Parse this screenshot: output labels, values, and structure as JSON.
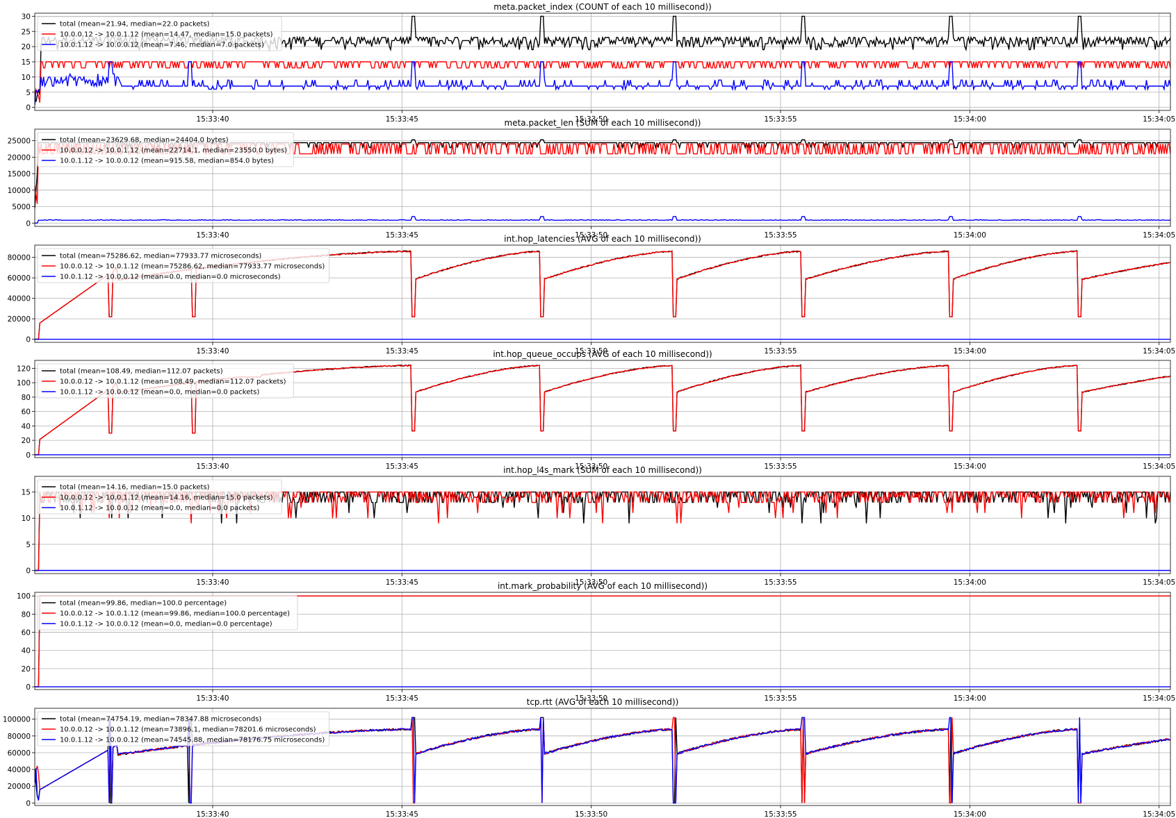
{
  "x_ticks": [
    "15:33:40",
    "15:33:45",
    "15:33:50",
    "15:33:55",
    "15:34:00",
    "15:34:05"
  ],
  "x_range": [
    "15:33:35.3",
    "15:34:05.3"
  ],
  "colors": {
    "total": "#000000",
    "forward": "#ff0000",
    "reverse": "#0000ff"
  },
  "panels": [
    {
      "title": "meta.packet_index (COUNT of each 10 millisecond))",
      "yticks": [
        "0",
        "5",
        "10",
        "15",
        "20",
        "25",
        "30"
      ],
      "ylim": [
        -1,
        31
      ],
      "legend": [
        "total (mean=21.94, median=22.0 packets)",
        "10.0.0.12 -> 10.0.1.12 (mean=14.47, median=15.0 packets)",
        "10.0.1.12 -> 10.0.0.12 (mean=7.46, median=7.0 packets)"
      ]
    },
    {
      "title": "meta.packet_len (SUM of each 10 millisecond))",
      "yticks": [
        "0",
        "5000",
        "10000",
        "15000",
        "20000",
        "25000"
      ],
      "ylim": [
        -1000,
        28500
      ],
      "legend": [
        "total (mean=23629.68, median=24404.0 bytes)",
        "10.0.0.12 -> 10.0.1.12 (mean=22714.1, median=23550.0 bytes)",
        "10.0.1.12 -> 10.0.0.12 (mean=915.58, median=854.0 bytes)"
      ]
    },
    {
      "title": "int.hop_latencies (AVG of each 10 millisecond))",
      "yticks": [
        "0",
        "20000",
        "40000",
        "60000",
        "80000"
      ],
      "ylim": [
        -3000,
        92000
      ],
      "legend": [
        "total (mean=75286.62, median=77933.77 microseconds)",
        "10.0.0.12 -> 10.0.1.12 (mean=75286.62, median=77933.77 microseconds)",
        "10.0.1.12 -> 10.0.0.12 (mean=0.0, median=0.0 microseconds)"
      ]
    },
    {
      "title": "int.hop_queue_occups (AVG of each 10 millisecond))",
      "yticks": [
        "0",
        "20",
        "40",
        "60",
        "80",
        "100",
        "120"
      ],
      "ylim": [
        -4,
        131
      ],
      "legend": [
        "total (mean=108.49, median=112.07 packets)",
        "10.0.0.12 -> 10.0.1.12 (mean=108.49, median=112.07 packets)",
        "10.0.1.12 -> 10.0.0.12 (mean=0.0, median=0.0 packets)"
      ]
    },
    {
      "title": "int.hop_l4s_mark (SUM of each 10 millisecond))",
      "yticks": [
        "0",
        "5",
        "10",
        "15"
      ],
      "ylim": [
        -0.6,
        18
      ],
      "legend": [
        "total (mean=14.16, median=15.0 packets)",
        "10.0.0.12 -> 10.0.1.12 (mean=14.16, median=15.0 packets)",
        "10.0.1.12 -> 10.0.0.12 (mean=0.0, median=0.0 packets)"
      ]
    },
    {
      "title": "int.mark_probability (AVG of each 10 millisecond))",
      "yticks": [
        "0",
        "20",
        "40",
        "60",
        "80",
        "100"
      ],
      "ylim": [
        -3,
        104
      ],
      "legend": [
        "total (mean=99.86, median=100.0 percentage)",
        "10.0.0.12 -> 10.0.1.12 (mean=99.86, median=100.0 percentage)",
        "10.0.1.12 -> 10.0.0.12 (mean=0.0, median=0.0 percentage)"
      ]
    },
    {
      "title": "tcp.rtt (AVG of each 10 millisecond))",
      "yticks": [
        "0",
        "20000",
        "40000",
        "60000",
        "80000",
        "100000"
      ],
      "ylim": [
        -3000,
        113000
      ],
      "legend": [
        "total (mean=74754.19, median=78347.88 microseconds)",
        "10.0.0.12 -> 10.0.1.12 (mean=73896.1, median=78201.6 microseconds)",
        "10.0.1.12 -> 10.0.0.12 (mean=74545.88, median=78176.75 microseconds)"
      ]
    }
  ],
  "chart_data": [
    {
      "type": "line",
      "title": "meta.packet_index (COUNT of each 10 millisecond))",
      "x": [
        "15:33:35.3",
        "15:33:37",
        "15:33:40",
        "15:33:45",
        "15:33:45.3",
        "15:33:48.7",
        "15:33:52.2",
        "15:33:55.6",
        "15:33:59.5",
        "15:34:02.9",
        "15:34:05.3"
      ],
      "ylim": [
        -1,
        31
      ],
      "series": [
        {
          "name": "total (mean=21.94, median=22.0 packets)",
          "values": [
            0,
            22,
            22,
            22,
            30,
            30,
            30,
            30,
            30,
            30,
            22
          ]
        },
        {
          "name": "10.0.0.12 -> 10.0.1.12 (mean=14.47, median=15.0 packets)",
          "values": [
            0,
            14,
            14,
            14,
            15,
            15,
            15,
            15,
            15,
            15,
            15
          ]
        },
        {
          "name": "10.0.1.12 -> 10.0.0.12 (mean=7.46, median=7.0 packets)",
          "values": [
            0,
            15,
            7,
            7,
            15,
            15,
            15,
            15,
            15,
            15,
            7
          ]
        }
      ]
    },
    {
      "type": "line",
      "title": "meta.packet_len (SUM of each 10 millisecond))",
      "x": [
        "15:33:35.3",
        "15:33:37",
        "15:33:40",
        "15:33:45",
        "15:33:50",
        "15:33:55",
        "15:34:00",
        "15:34:05.3"
      ],
      "ylim": [
        -1000,
        28500
      ],
      "series": [
        {
          "name": "total (mean=23629.68, median=24404.0 bytes)",
          "values": [
            0,
            24400,
            24400,
            24400,
            24400,
            24400,
            24400,
            24400
          ]
        },
        {
          "name": "10.0.0.12 -> 10.0.1.12 (mean=22714.1, median=23550.0 bytes)",
          "values": [
            0,
            23550,
            23550,
            23550,
            23550,
            23550,
            23550,
            23550
          ]
        },
        {
          "name": "10.0.1.12 -> 10.0.0.12 (mean=915.58, median=854.0 bytes)",
          "values": [
            0,
            854,
            854,
            854,
            854,
            854,
            854,
            854
          ]
        }
      ]
    },
    {
      "type": "line",
      "title": "int.hop_latencies (AVG of each 10 millisecond))",
      "x": [
        "15:33:35.3",
        "15:33:35.8",
        "15:33:37.5",
        "15:33:45.2",
        "15:33:45.3",
        "15:33:48.6",
        "15:33:48.7",
        "15:33:52.1",
        "15:33:52.2",
        "15:33:55.6",
        "15:33:55.7",
        "15:33:59.4",
        "15:33:59.5",
        "15:34:02.9",
        "15:34:03",
        "15:34:05.3"
      ],
      "ylim": [
        -3000,
        92000
      ],
      "series": [
        {
          "name": "total (mean=75286.62, median=77933.77 microseconds)",
          "values": [
            0,
            15000,
            70000,
            84000,
            27000,
            88000,
            25000,
            86000,
            20000,
            88000,
            20000,
            89000,
            22000,
            87000,
            27000,
            82000
          ]
        },
        {
          "name": "10.0.0.12 -> 10.0.1.12 (mean=75286.62, median=77933.77 microseconds)",
          "values": [
            0,
            15000,
            70000,
            84000,
            27000,
            88000,
            25000,
            86000,
            20000,
            88000,
            20000,
            89000,
            22000,
            87000,
            27000,
            82000
          ]
        },
        {
          "name": "10.0.1.12 -> 10.0.0.12 (mean=0.0, median=0.0 microseconds)",
          "values": [
            0,
            0,
            0,
            0,
            0,
            0,
            0,
            0,
            0,
            0,
            0,
            0,
            0,
            0,
            0,
            0
          ]
        }
      ]
    },
    {
      "type": "line",
      "title": "int.hop_queue_occups (AVG of each 10 millisecond))",
      "x": [
        "15:33:35.3",
        "15:33:35.8",
        "15:33:37.5",
        "15:33:45.2",
        "15:33:45.3",
        "15:33:48.6",
        "15:33:48.7",
        "15:33:52.1",
        "15:33:52.2",
        "15:33:55.6",
        "15:33:55.7",
        "15:33:59.4",
        "15:33:59.5",
        "15:34:02.9",
        "15:34:03",
        "15:34:05.3"
      ],
      "ylim": [
        -4,
        131
      ],
      "series": [
        {
          "name": "total (mean=108.49, median=112.07 packets)",
          "values": [
            0,
            20,
            100,
            125,
            39,
            125,
            37,
            125,
            28,
            125,
            28,
            125,
            33,
            125,
            39,
            120
          ]
        },
        {
          "name": "10.0.0.12 -> 10.0.1.12 (mean=108.49, median=112.07 packets)",
          "values": [
            0,
            20,
            100,
            125,
            39,
            125,
            37,
            125,
            28,
            125,
            28,
            125,
            33,
            125,
            39,
            120
          ]
        },
        {
          "name": "10.0.1.12 -> 10.0.0.12 (mean=0.0, median=0.0 packets)",
          "values": [
            0,
            0,
            0,
            0,
            0,
            0,
            0,
            0,
            0,
            0,
            0,
            0,
            0,
            0,
            0,
            0
          ]
        }
      ]
    },
    {
      "type": "line",
      "title": "int.hop_l4s_mark (SUM of each 10 millisecond))",
      "x": [
        "15:33:35.3",
        "15:33:35.5",
        "15:33:40",
        "15:33:45",
        "15:33:48.6",
        "15:33:50",
        "15:33:55",
        "15:34:00",
        "15:34:02.8",
        "15:34:05.3"
      ],
      "ylim": [
        -0.6,
        18
      ],
      "series": [
        {
          "name": "total (mean=14.16, median=15.0 packets)",
          "values": [
            0,
            15,
            15,
            15,
            5,
            15,
            15,
            15,
            7,
            15
          ]
        },
        {
          "name": "10.0.0.12 -> 10.0.1.12 (mean=14.16, median=15.0 packets)",
          "values": [
            0,
            15,
            15,
            15,
            5,
            15,
            15,
            15,
            7,
            15
          ]
        },
        {
          "name": "10.0.1.12 -> 10.0.0.12 (mean=0.0, median=0.0 packets)",
          "values": [
            0,
            0,
            0,
            0,
            0,
            0,
            0,
            0,
            0,
            0
          ]
        }
      ]
    },
    {
      "type": "line",
      "title": "int.mark_probability (AVG of each 10 millisecond))",
      "x": [
        "15:33:35.3",
        "15:33:35.5",
        "15:34:05.3"
      ],
      "ylim": [
        -3,
        104
      ],
      "series": [
        {
          "name": "total (mean=99.86, median=100.0 percentage)",
          "values": [
            0,
            100,
            100
          ]
        },
        {
          "name": "10.0.0.12 -> 10.0.1.12 (mean=99.86, median=100.0 percentage)",
          "values": [
            0,
            100,
            100
          ]
        },
        {
          "name": "10.0.1.12 -> 10.0.0.12 (mean=0.0, median=0.0 percentage)",
          "values": [
            0,
            0,
            0
          ]
        }
      ]
    },
    {
      "type": "line",
      "title": "tcp.rtt (AVG of each 10 millisecond))",
      "x": [
        "15:33:35.3",
        "15:33:35.8",
        "15:33:37.5",
        "15:33:45.2",
        "15:33:45.3",
        "15:33:48.6",
        "15:33:48.7",
        "15:33:52.1",
        "15:33:52.2",
        "15:33:55.6",
        "15:33:55.7",
        "15:33:59.4",
        "15:33:59.5",
        "15:34:02.9",
        "15:34:03",
        "15:34:05.3"
      ],
      "ylim": [
        -3000,
        113000
      ],
      "series": [
        {
          "name": "total (mean=74754.19, median=78347.88 microseconds)",
          "values": [
            0,
            15000,
            70000,
            85000,
            0,
            88000,
            0,
            87000,
            0,
            89000,
            0,
            90000,
            0,
            88000,
            0,
            83000
          ]
        },
        {
          "name": "10.0.0.12 -> 10.0.1.12 (mean=73896.1, median=78201.6 microseconds)",
          "values": [
            0,
            15000,
            70000,
            85000,
            0,
            89000,
            0,
            87000,
            0,
            89000,
            0,
            90000,
            0,
            88000,
            0,
            83000
          ]
        },
        {
          "name": "10.0.1.12 -> 10.0.0.12 (mean=74545.88, median=78176.75 microseconds)",
          "values": [
            0,
            15000,
            70000,
            85000,
            0,
            88000,
            0,
            87000,
            0,
            89000,
            0,
            89000,
            0,
            88000,
            0,
            83000
          ]
        }
      ]
    }
  ]
}
